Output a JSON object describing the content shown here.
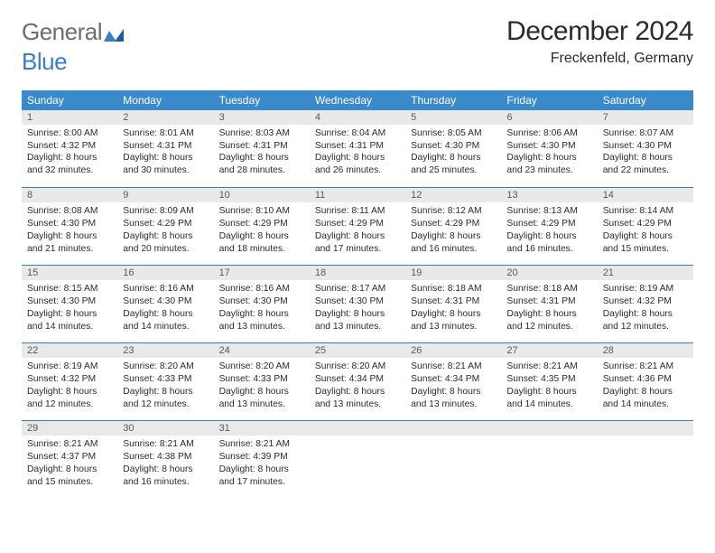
{
  "brand": {
    "name_gray": "General",
    "name_blue": "Blue"
  },
  "title": "December 2024",
  "location": "Freckenfeld, Germany",
  "colors": {
    "header_bg": "#3a89c9",
    "header_text": "#ffffff",
    "daynum_bg": "#e9e9e9",
    "daynum_text": "#5a5a5a",
    "cell_text": "#2b2b2b",
    "row_divider": "#3a7fbf",
    "logo_gray": "#6d6d6d",
    "logo_blue": "#3a7fbf",
    "page_bg": "#ffffff"
  },
  "day_headers": [
    "Sunday",
    "Monday",
    "Tuesday",
    "Wednesday",
    "Thursday",
    "Friday",
    "Saturday"
  ],
  "weeks": [
    [
      {
        "d": "1",
        "sr": "Sunrise: 8:00 AM",
        "ss": "Sunset: 4:32 PM",
        "dl1": "Daylight: 8 hours",
        "dl2": "and 32 minutes."
      },
      {
        "d": "2",
        "sr": "Sunrise: 8:01 AM",
        "ss": "Sunset: 4:31 PM",
        "dl1": "Daylight: 8 hours",
        "dl2": "and 30 minutes."
      },
      {
        "d": "3",
        "sr": "Sunrise: 8:03 AM",
        "ss": "Sunset: 4:31 PM",
        "dl1": "Daylight: 8 hours",
        "dl2": "and 28 minutes."
      },
      {
        "d": "4",
        "sr": "Sunrise: 8:04 AM",
        "ss": "Sunset: 4:31 PM",
        "dl1": "Daylight: 8 hours",
        "dl2": "and 26 minutes."
      },
      {
        "d": "5",
        "sr": "Sunrise: 8:05 AM",
        "ss": "Sunset: 4:30 PM",
        "dl1": "Daylight: 8 hours",
        "dl2": "and 25 minutes."
      },
      {
        "d": "6",
        "sr": "Sunrise: 8:06 AM",
        "ss": "Sunset: 4:30 PM",
        "dl1": "Daylight: 8 hours",
        "dl2": "and 23 minutes."
      },
      {
        "d": "7",
        "sr": "Sunrise: 8:07 AM",
        "ss": "Sunset: 4:30 PM",
        "dl1": "Daylight: 8 hours",
        "dl2": "and 22 minutes."
      }
    ],
    [
      {
        "d": "8",
        "sr": "Sunrise: 8:08 AM",
        "ss": "Sunset: 4:30 PM",
        "dl1": "Daylight: 8 hours",
        "dl2": "and 21 minutes."
      },
      {
        "d": "9",
        "sr": "Sunrise: 8:09 AM",
        "ss": "Sunset: 4:29 PM",
        "dl1": "Daylight: 8 hours",
        "dl2": "and 20 minutes."
      },
      {
        "d": "10",
        "sr": "Sunrise: 8:10 AM",
        "ss": "Sunset: 4:29 PM",
        "dl1": "Daylight: 8 hours",
        "dl2": "and 18 minutes."
      },
      {
        "d": "11",
        "sr": "Sunrise: 8:11 AM",
        "ss": "Sunset: 4:29 PM",
        "dl1": "Daylight: 8 hours",
        "dl2": "and 17 minutes."
      },
      {
        "d": "12",
        "sr": "Sunrise: 8:12 AM",
        "ss": "Sunset: 4:29 PM",
        "dl1": "Daylight: 8 hours",
        "dl2": "and 16 minutes."
      },
      {
        "d": "13",
        "sr": "Sunrise: 8:13 AM",
        "ss": "Sunset: 4:29 PM",
        "dl1": "Daylight: 8 hours",
        "dl2": "and 16 minutes."
      },
      {
        "d": "14",
        "sr": "Sunrise: 8:14 AM",
        "ss": "Sunset: 4:29 PM",
        "dl1": "Daylight: 8 hours",
        "dl2": "and 15 minutes."
      }
    ],
    [
      {
        "d": "15",
        "sr": "Sunrise: 8:15 AM",
        "ss": "Sunset: 4:30 PM",
        "dl1": "Daylight: 8 hours",
        "dl2": "and 14 minutes."
      },
      {
        "d": "16",
        "sr": "Sunrise: 8:16 AM",
        "ss": "Sunset: 4:30 PM",
        "dl1": "Daylight: 8 hours",
        "dl2": "and 14 minutes."
      },
      {
        "d": "17",
        "sr": "Sunrise: 8:16 AM",
        "ss": "Sunset: 4:30 PM",
        "dl1": "Daylight: 8 hours",
        "dl2": "and 13 minutes."
      },
      {
        "d": "18",
        "sr": "Sunrise: 8:17 AM",
        "ss": "Sunset: 4:30 PM",
        "dl1": "Daylight: 8 hours",
        "dl2": "and 13 minutes."
      },
      {
        "d": "19",
        "sr": "Sunrise: 8:18 AM",
        "ss": "Sunset: 4:31 PM",
        "dl1": "Daylight: 8 hours",
        "dl2": "and 13 minutes."
      },
      {
        "d": "20",
        "sr": "Sunrise: 8:18 AM",
        "ss": "Sunset: 4:31 PM",
        "dl1": "Daylight: 8 hours",
        "dl2": "and 12 minutes."
      },
      {
        "d": "21",
        "sr": "Sunrise: 8:19 AM",
        "ss": "Sunset: 4:32 PM",
        "dl1": "Daylight: 8 hours",
        "dl2": "and 12 minutes."
      }
    ],
    [
      {
        "d": "22",
        "sr": "Sunrise: 8:19 AM",
        "ss": "Sunset: 4:32 PM",
        "dl1": "Daylight: 8 hours",
        "dl2": "and 12 minutes."
      },
      {
        "d": "23",
        "sr": "Sunrise: 8:20 AM",
        "ss": "Sunset: 4:33 PM",
        "dl1": "Daylight: 8 hours",
        "dl2": "and 12 minutes."
      },
      {
        "d": "24",
        "sr": "Sunrise: 8:20 AM",
        "ss": "Sunset: 4:33 PM",
        "dl1": "Daylight: 8 hours",
        "dl2": "and 13 minutes."
      },
      {
        "d": "25",
        "sr": "Sunrise: 8:20 AM",
        "ss": "Sunset: 4:34 PM",
        "dl1": "Daylight: 8 hours",
        "dl2": "and 13 minutes."
      },
      {
        "d": "26",
        "sr": "Sunrise: 8:21 AM",
        "ss": "Sunset: 4:34 PM",
        "dl1": "Daylight: 8 hours",
        "dl2": "and 13 minutes."
      },
      {
        "d": "27",
        "sr": "Sunrise: 8:21 AM",
        "ss": "Sunset: 4:35 PM",
        "dl1": "Daylight: 8 hours",
        "dl2": "and 14 minutes."
      },
      {
        "d": "28",
        "sr": "Sunrise: 8:21 AM",
        "ss": "Sunset: 4:36 PM",
        "dl1": "Daylight: 8 hours",
        "dl2": "and 14 minutes."
      }
    ],
    [
      {
        "d": "29",
        "sr": "Sunrise: 8:21 AM",
        "ss": "Sunset: 4:37 PM",
        "dl1": "Daylight: 8 hours",
        "dl2": "and 15 minutes."
      },
      {
        "d": "30",
        "sr": "Sunrise: 8:21 AM",
        "ss": "Sunset: 4:38 PM",
        "dl1": "Daylight: 8 hours",
        "dl2": "and 16 minutes."
      },
      {
        "d": "31",
        "sr": "Sunrise: 8:21 AM",
        "ss": "Sunset: 4:39 PM",
        "dl1": "Daylight: 8 hours",
        "dl2": "and 17 minutes."
      },
      {
        "empty": true
      },
      {
        "empty": true
      },
      {
        "empty": true
      },
      {
        "empty": true
      }
    ]
  ]
}
